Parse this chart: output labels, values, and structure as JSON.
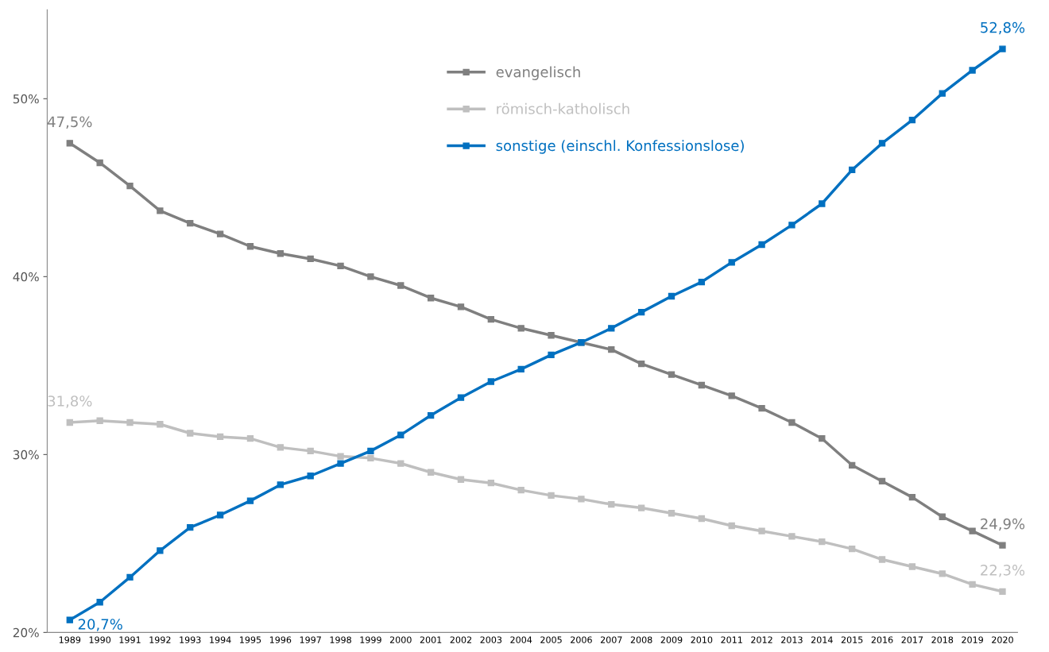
{
  "chart_data": {
    "type": "line",
    "categories": [
      "1989",
      "1990",
      "1991",
      "1992",
      "1993",
      "1994",
      "1995",
      "1996",
      "1997",
      "1998",
      "1999",
      "2000",
      "2001",
      "2002",
      "2003",
      "2004",
      "2005",
      "2006",
      "2007",
      "2008",
      "2009",
      "2010",
      "2011",
      "2012",
      "2013",
      "2014",
      "2015",
      "2016",
      "2017",
      "2018",
      "2019",
      "2020"
    ],
    "ylim": [
      20,
      55
    ],
    "yticks": [
      {
        "value": 20,
        "label": "20%"
      },
      {
        "value": 30,
        "label": "30%"
      },
      {
        "value": 40,
        "label": "40%"
      },
      {
        "value": 50,
        "label": "50%"
      }
    ],
    "grid": false,
    "legend": "top",
    "marker": "square",
    "line_style": "solid",
    "series": [
      {
        "name": "evangelisch",
        "color": "#7f7f7f",
        "values": [
          47.5,
          46.4,
          45.1,
          43.7,
          43.0,
          42.4,
          41.7,
          41.3,
          41.0,
          40.6,
          40.0,
          39.5,
          38.8,
          38.3,
          37.6,
          37.1,
          36.7,
          36.3,
          35.9,
          35.1,
          34.5,
          33.9,
          33.3,
          32.6,
          31.8,
          30.9,
          29.4,
          28.5,
          27.6,
          26.5,
          25.7,
          24.9
        ],
        "value_labels": [
          "47,5%",
          null,
          null,
          null,
          null,
          null,
          null,
          null,
          null,
          null,
          null,
          null,
          null,
          null,
          null,
          null,
          null,
          null,
          null,
          null,
          null,
          null,
          null,
          null,
          null,
          null,
          null,
          null,
          null,
          null,
          null,
          "24,9%"
        ]
      },
      {
        "name": "römisch-katholisch",
        "color": "#bfbfbf",
        "values": [
          31.8,
          31.9,
          31.8,
          31.7,
          31.2,
          31.0,
          30.9,
          30.4,
          30.2,
          29.9,
          29.8,
          29.5,
          29.0,
          28.6,
          28.4,
          28.0,
          27.7,
          27.5,
          27.2,
          27.0,
          26.7,
          26.4,
          26.0,
          25.7,
          25.4,
          25.1,
          24.7,
          24.1,
          23.7,
          23.3,
          22.7,
          22.3
        ],
        "value_labels": [
          "31,8%",
          null,
          null,
          null,
          null,
          null,
          null,
          null,
          null,
          null,
          null,
          null,
          null,
          null,
          null,
          null,
          null,
          null,
          null,
          null,
          null,
          null,
          null,
          null,
          null,
          null,
          null,
          null,
          null,
          null,
          null,
          "22,3%"
        ]
      },
      {
        "name": "sonstige (einschl. Konfessionslose)",
        "color": "#0070c0",
        "values": [
          20.7,
          21.7,
          23.1,
          24.6,
          25.9,
          26.6,
          27.4,
          28.3,
          28.8,
          29.5,
          30.2,
          31.1,
          32.2,
          33.2,
          34.1,
          34.8,
          35.6,
          36.3,
          37.1,
          38.0,
          38.9,
          39.7,
          40.8,
          41.8,
          42.9,
          44.1,
          46.0,
          47.5,
          48.8,
          50.3,
          51.6,
          52.8
        ],
        "value_labels": [
          "20,7%",
          null,
          null,
          null,
          null,
          null,
          null,
          null,
          null,
          null,
          null,
          null,
          null,
          null,
          null,
          null,
          null,
          null,
          null,
          null,
          null,
          null,
          null,
          null,
          null,
          null,
          null,
          null,
          null,
          null,
          null,
          "52,8%"
        ]
      }
    ]
  }
}
